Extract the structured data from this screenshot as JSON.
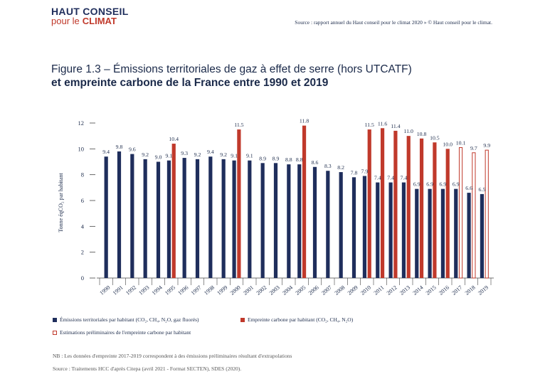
{
  "header": {
    "logo_line1": "HAUT CONSEIL",
    "logo_line2a": "pour le",
    "logo_line2b": "CLIMAT",
    "source": "Source : rapport annuel du Haut conseil pour le climat 2020 » © Haut conseil pour le climat."
  },
  "title": {
    "line1": "Figure 1.3 – Émissions territoriales de gaz à effet de serre (hors UTCATF)",
    "line2": "et empreinte carbone de la France entre 1990 et 2019"
  },
  "legend": {
    "territorial": "Émissions territoriales par habitant (CO₂, CH₄, N₂O, gaz fluorés)",
    "footprint": "Empreinte carbone par habitant (CO₂, CH₄, N₂O)",
    "estimated": "Estimations préliminaires de l'empreinte carbone par habitant"
  },
  "notes": {
    "nb": "NB : Les données d'empreinte 2017-2019 correspondent à des émissions préliminaires résultant d'extrapolations",
    "source": "Source : Traitements HCC d'après Citepa (avril 2021 - Format SECTEN), SDES (2020)."
  },
  "colors": {
    "navy": "#1f2e5c",
    "red": "#c0392b",
    "axis": "#444444"
  },
  "chart_data": {
    "type": "bar",
    "title": "Émissions territoriales de gaz à effet de serre (hors UTCATF) et empreinte carbone de la France entre 1990 et 2019",
    "ylabel": "Tonne éqCO₂ par habitant",
    "xlabel": "",
    "ylim": [
      0,
      12
    ],
    "yticks": [
      0,
      2,
      4,
      6,
      8,
      10,
      12
    ],
    "categories": [
      "1990",
      "1991",
      "1992",
      "1993",
      "1994",
      "1995",
      "1996",
      "1997",
      "1998",
      "1999",
      "2000",
      "2001",
      "2002",
      "2003",
      "2004",
      "2005",
      "2006",
      "2007",
      "2008",
      "2009",
      "2010",
      "2011",
      "2012",
      "2013",
      "2014",
      "2015",
      "2016",
      "2017",
      "2018",
      "2019"
    ],
    "series": [
      {
        "name": "Émissions territoriales par habitant",
        "values": [
          9.4,
          9.8,
          9.6,
          9.2,
          9.0,
          9.1,
          9.3,
          9.2,
          9.4,
          9.2,
          9.1,
          9.1,
          8.9,
          8.9,
          8.8,
          8.8,
          8.6,
          8.3,
          8.2,
          7.8,
          7.9,
          7.4,
          7.4,
          7.4,
          6.9,
          6.9,
          6.9,
          6.9,
          6.6,
          6.5
        ]
      },
      {
        "name": "Empreinte carbone par habitant",
        "values": [
          null,
          null,
          null,
          null,
          null,
          10.4,
          null,
          null,
          null,
          null,
          11.5,
          null,
          null,
          null,
          null,
          11.8,
          null,
          null,
          null,
          null,
          11.5,
          11.6,
          11.4,
          11.0,
          10.8,
          10.5,
          10.0,
          null,
          null,
          null
        ]
      },
      {
        "name": "Estimations préliminaires de l'empreinte carbone",
        "values": [
          null,
          null,
          null,
          null,
          null,
          null,
          null,
          null,
          null,
          null,
          null,
          null,
          null,
          null,
          null,
          null,
          null,
          null,
          null,
          null,
          null,
          null,
          null,
          null,
          null,
          null,
          null,
          10.1,
          9.7,
          9.9
        ]
      }
    ],
    "legend_position": "bottom"
  }
}
